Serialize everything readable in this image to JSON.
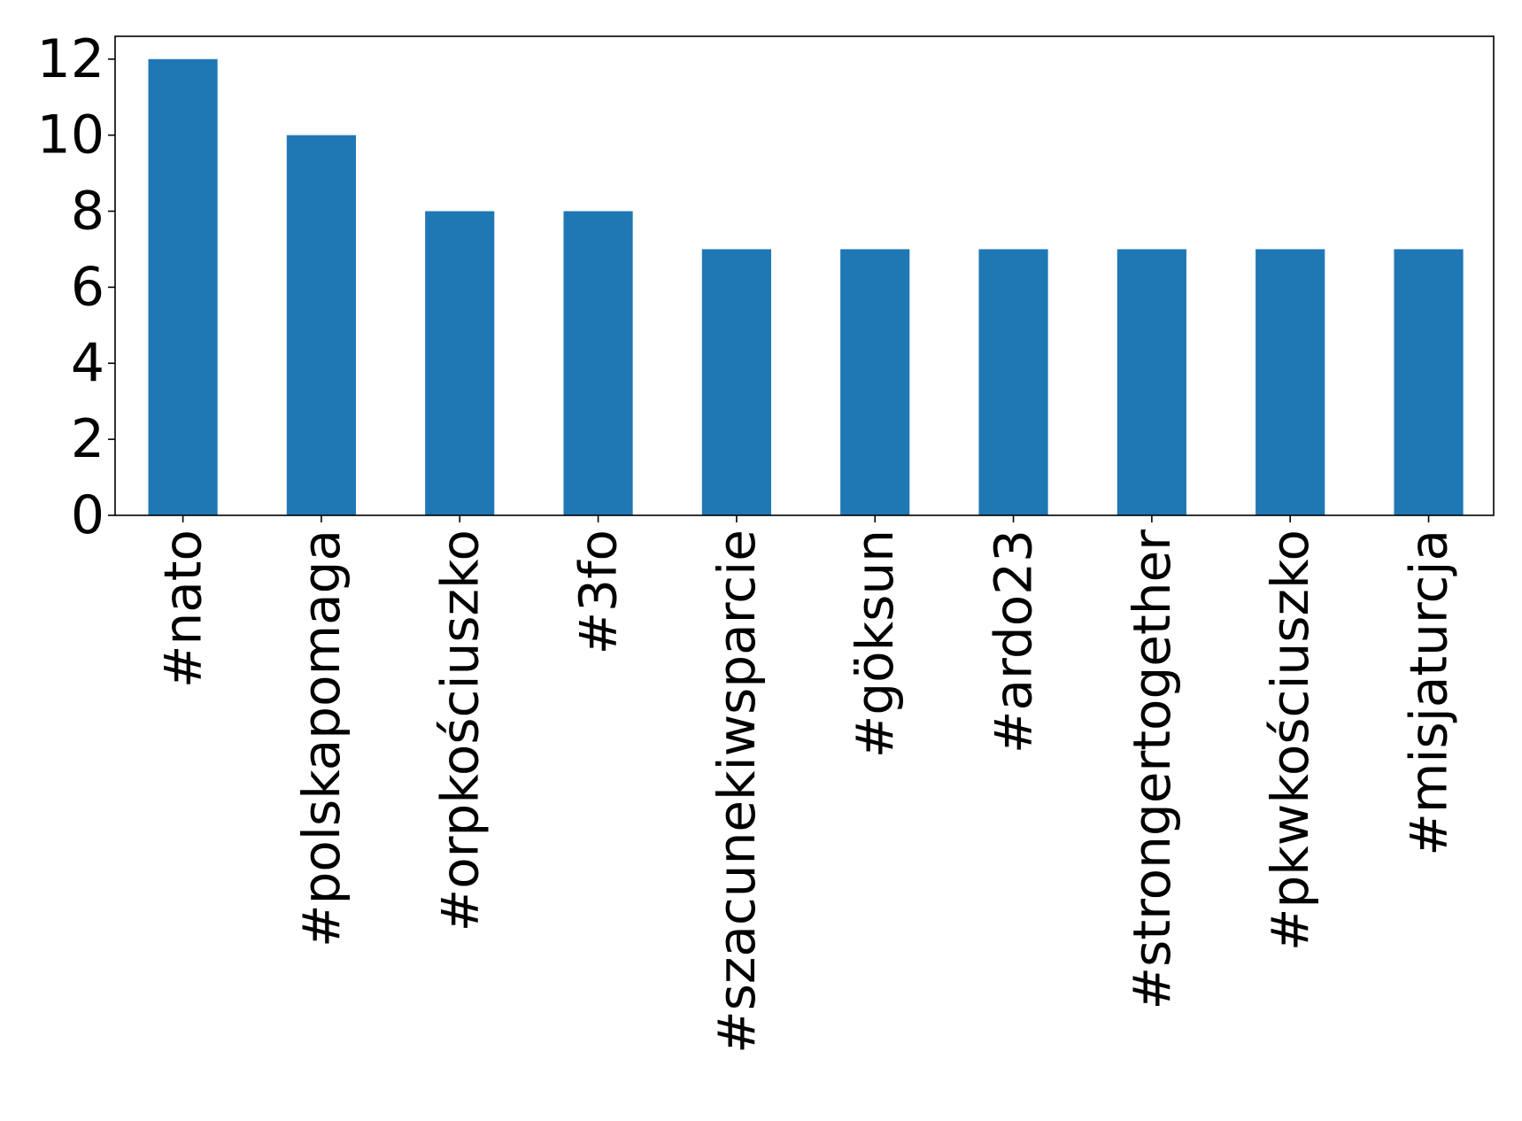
{
  "chart_data": {
    "type": "bar",
    "title": "",
    "xlabel": "",
    "ylabel": "",
    "categories": [
      "#nato",
      "#polskapomaga",
      "#orpkościuszko",
      "#3fo",
      "#szacunekiwsparcie",
      "#göksun",
      "#ardo23",
      "#strongertogether",
      "#pkwkościuszko",
      "#misjaturcja"
    ],
    "values": [
      12,
      10,
      8,
      8,
      7,
      7,
      7,
      7,
      7,
      7
    ],
    "ylim": [
      0,
      12.6
    ],
    "yticks": [
      "0",
      "2",
      "4",
      "6",
      "8",
      "10",
      "12"
    ],
    "grid": false,
    "legend": "none",
    "colors": {
      "bar": "#1f77b4",
      "axis": "#000000",
      "text": "#000000",
      "background": "#ffffff"
    }
  }
}
